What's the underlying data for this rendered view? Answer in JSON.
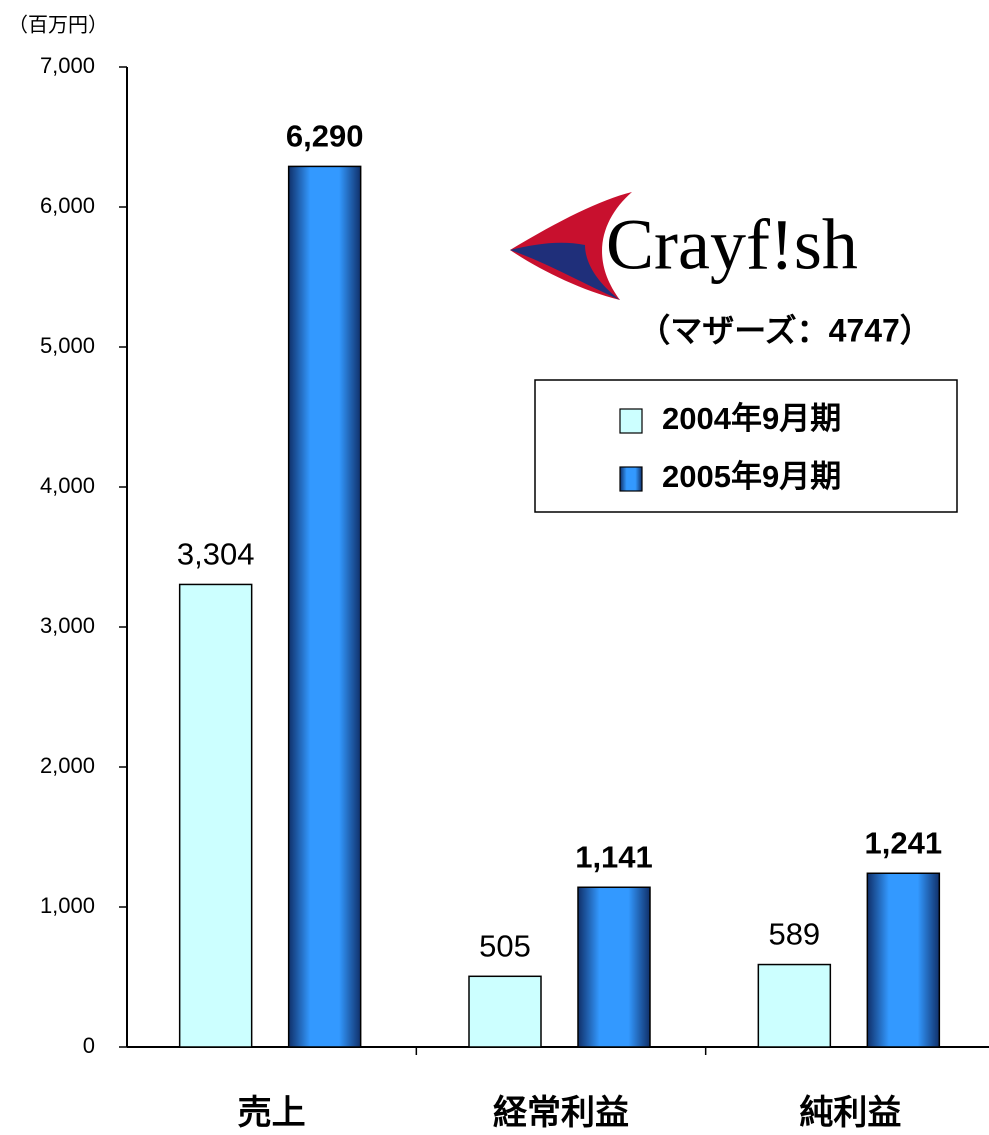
{
  "chart_data": {
    "type": "bar",
    "unit": "（百万円）",
    "logo": "Crayf!sh",
    "annotation": "（マザーズ：4747）",
    "categories": [
      "売上",
      "経常利益",
      "純利益"
    ],
    "series": [
      {
        "name": "2004年9月期",
        "color": "#ccffff",
        "values": [
          3304,
          505,
          589
        ],
        "value_labels": [
          "3,304",
          "505",
          "589"
        ]
      },
      {
        "name": "2005年9月期",
        "color": "#3399ff",
        "values": [
          6290,
          1141,
          1241
        ],
        "value_labels": [
          "6,290",
          "1,141",
          "1,241"
        ]
      }
    ],
    "ylim": [
      0,
      7000
    ],
    "yticks": [
      0,
      {
        "value": 1000,
        "label": "1,000"
      },
      {
        "value": 2000,
        "label": "2,000"
      },
      {
        "value": 3000,
        "label": "3,000"
      },
      {
        "value": 4000,
        "label": "4,000"
      },
      {
        "value": 5000,
        "label": "5,000"
      },
      {
        "value": 6000,
        "label": "6,000"
      },
      {
        "value": 7000,
        "label": "7,000"
      }
    ],
    "grid": false
  }
}
